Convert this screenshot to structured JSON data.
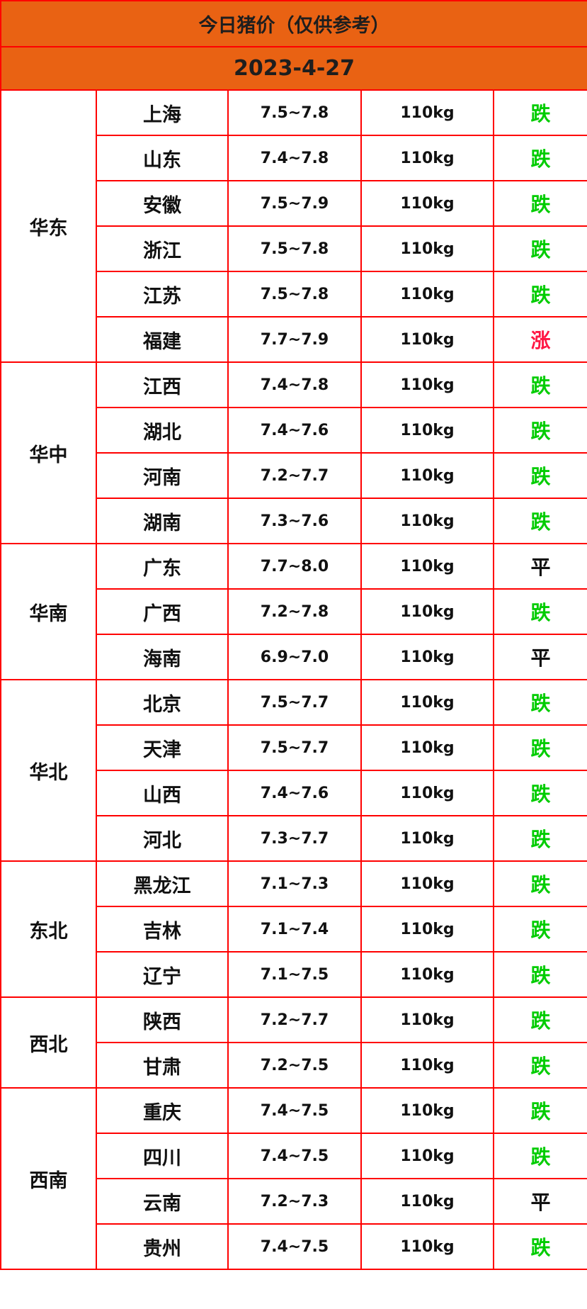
{
  "title": "今日猪价（仅供参考）",
  "date": "2023-4-27",
  "colors": {
    "header_bg": "#e96213",
    "border": "#ff0000",
    "down": "#00cc00",
    "up": "#ff1744",
    "flat": "#111111"
  },
  "regions": [
    {
      "name": "华东",
      "rows": [
        {
          "province": "上海",
          "price": "7.5~7.8",
          "weight": "110kg",
          "trend": "跌"
        },
        {
          "province": "山东",
          "price": "7.4~7.8",
          "weight": "110kg",
          "trend": "跌"
        },
        {
          "province": "安徽",
          "price": "7.5~7.9",
          "weight": "110kg",
          "trend": "跌"
        },
        {
          "province": "浙江",
          "price": "7.5~7.8",
          "weight": "110kg",
          "trend": "跌"
        },
        {
          "province": "江苏",
          "price": "7.5~7.8",
          "weight": "110kg",
          "trend": "跌"
        },
        {
          "province": "福建",
          "price": "7.7~7.9",
          "weight": "110kg",
          "trend": "涨"
        }
      ]
    },
    {
      "name": "华中",
      "rows": [
        {
          "province": "江西",
          "price": "7.4~7.8",
          "weight": "110kg",
          "trend": "跌"
        },
        {
          "province": "湖北",
          "price": "7.4~7.6",
          "weight": "110kg",
          "trend": "跌"
        },
        {
          "province": "河南",
          "price": "7.2~7.7",
          "weight": "110kg",
          "trend": "跌"
        },
        {
          "province": "湖南",
          "price": "7.3~7.6",
          "weight": "110kg",
          "trend": "跌"
        }
      ]
    },
    {
      "name": "华南",
      "rows": [
        {
          "province": "广东",
          "price": "7.7~8.0",
          "weight": "110kg",
          "trend": "平"
        },
        {
          "province": "广西",
          "price": "7.2~7.8",
          "weight": "110kg",
          "trend": "跌"
        },
        {
          "province": "海南",
          "price": "6.9~7.0",
          "weight": "110kg",
          "trend": "平"
        }
      ]
    },
    {
      "name": "华北",
      "rows": [
        {
          "province": "北京",
          "price": "7.5~7.7",
          "weight": "110kg",
          "trend": "跌"
        },
        {
          "province": "天津",
          "price": "7.5~7.7",
          "weight": "110kg",
          "trend": "跌"
        },
        {
          "province": "山西",
          "price": "7.4~7.6",
          "weight": "110kg",
          "trend": "跌"
        },
        {
          "province": "河北",
          "price": "7.3~7.7",
          "weight": "110kg",
          "trend": "跌"
        }
      ]
    },
    {
      "name": "东北",
      "rows": [
        {
          "province": "黑龙江",
          "price": "7.1~7.3",
          "weight": "110kg",
          "trend": "跌"
        },
        {
          "province": "吉林",
          "price": "7.1~7.4",
          "weight": "110kg",
          "trend": "跌"
        },
        {
          "province": "辽宁",
          "price": "7.1~7.5",
          "weight": "110kg",
          "trend": "跌"
        }
      ]
    },
    {
      "name": "西北",
      "rows": [
        {
          "province": "陕西",
          "price": "7.2~7.7",
          "weight": "110kg",
          "trend": "跌"
        },
        {
          "province": "甘肃",
          "price": "7.2~7.5",
          "weight": "110kg",
          "trend": "跌"
        }
      ]
    },
    {
      "name": "西南",
      "rows": [
        {
          "province": "重庆",
          "price": "7.4~7.5",
          "weight": "110kg",
          "trend": "跌"
        },
        {
          "province": "四川",
          "price": "7.4~7.5",
          "weight": "110kg",
          "trend": "跌"
        },
        {
          "province": "云南",
          "price": "7.2~7.3",
          "weight": "110kg",
          "trend": "平"
        },
        {
          "province": "贵州",
          "price": "7.4~7.5",
          "weight": "110kg",
          "trend": "跌"
        }
      ]
    }
  ]
}
